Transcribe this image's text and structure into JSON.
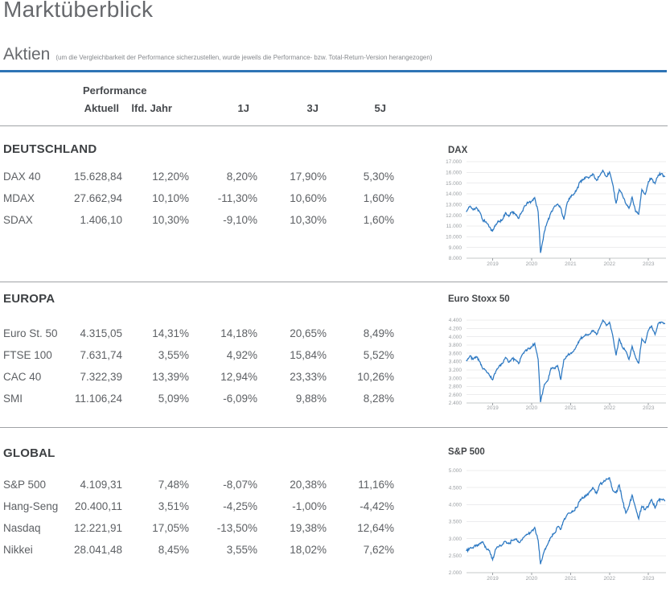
{
  "page": {
    "title": "Marktüberblick"
  },
  "aktien": {
    "title": "Aktien",
    "note": "(um die Vergleichbarkeit der Performance sicherzustellen, wurde jeweils die Performance- bzw. Total-Return-Version herangezogen)"
  },
  "table": {
    "group_header": "Performance",
    "columns": [
      "Aktuell",
      "lfd. Jahr",
      "1J",
      "3J",
      "5J"
    ],
    "sections": [
      {
        "title": "DEUTSCHLAND",
        "rows": [
          {
            "name": "DAX 40",
            "values": [
              "15.628,84",
              "12,20%",
              "8,20%",
              "17,90%",
              "5,30%"
            ]
          },
          {
            "name": "MDAX",
            "values": [
              "27.662,94",
              "10,10%",
              "-11,30%",
              "10,60%",
              "1,60%"
            ]
          },
          {
            "name": "SDAX",
            "values": [
              "1.406,10",
              "10,30%",
              "-9,10%",
              "10,30%",
              "1,60%"
            ]
          }
        ]
      },
      {
        "title": "EUROPA",
        "rows": [
          {
            "name": "Euro St. 50",
            "values": [
              "4.315,05",
              "14,31%",
              "14,18%",
              "20,65%",
              "8,49%"
            ]
          },
          {
            "name": "FTSE 100",
            "values": [
              "7.631,74",
              "3,55%",
              "4,92%",
              "15,84%",
              "5,52%"
            ]
          },
          {
            "name": "CAC 40",
            "values": [
              "7.322,39",
              "13,39%",
              "12,94%",
              "23,33%",
              "10,26%"
            ]
          },
          {
            "name": "SMI",
            "values": [
              "11.106,24",
              "5,09%",
              "-6,09%",
              "9,88%",
              "8,28%"
            ]
          }
        ]
      },
      {
        "title": "GLOBAL",
        "rows": [
          {
            "name": "S&P 500",
            "values": [
              "4.109,31",
              "7,48%",
              "-8,07%",
              "20,38%",
              "11,16%"
            ]
          },
          {
            "name": "Hang-Seng",
            "values": [
              "20.400,11",
              "3,51%",
              "-4,25%",
              "-1,00%",
              "-4,42%"
            ]
          },
          {
            "name": "Nasdaq",
            "values": [
              "12.221,91",
              "17,05%",
              "-13,50%",
              "19,38%",
              "12,64%"
            ]
          },
          {
            "name": "Nikkei",
            "values": [
              "28.041,48",
              "8,45%",
              "3,55%",
              "18,02%",
              "7,62%"
            ]
          }
        ]
      }
    ]
  },
  "colors": {
    "accent_rule": "#2e74b5",
    "chart_line": "#2c78c2",
    "divider": "#a0a3a6",
    "gridline": "#ececee",
    "axis_line": "#c6c8ca",
    "axis_text": "#9a9ea2"
  },
  "chart_data": [
    {
      "type": "line",
      "title": "DAX",
      "ylim": [
        8000,
        17000
      ],
      "ytick_step": 1000,
      "xlim": [
        2018.33,
        2023.45
      ],
      "xticks": [
        2019,
        2020,
        2021,
        2022,
        2023
      ],
      "x": [
        2018.33,
        2018.42,
        2018.5,
        2018.58,
        2018.67,
        2018.75,
        2018.83,
        2018.92,
        2019.0,
        2019.08,
        2019.17,
        2019.25,
        2019.33,
        2019.42,
        2019.5,
        2019.58,
        2019.67,
        2019.75,
        2019.83,
        2019.92,
        2020.0,
        2020.08,
        2020.17,
        2020.23,
        2020.33,
        2020.42,
        2020.5,
        2020.58,
        2020.67,
        2020.75,
        2020.83,
        2020.92,
        2021.0,
        2021.08,
        2021.17,
        2021.25,
        2021.33,
        2021.42,
        2021.5,
        2021.58,
        2021.67,
        2021.75,
        2021.83,
        2021.92,
        2022.0,
        2022.08,
        2022.17,
        2022.25,
        2022.33,
        2022.42,
        2022.5,
        2022.58,
        2022.67,
        2022.75,
        2022.83,
        2022.92,
        2023.0,
        2023.08,
        2023.17,
        2023.25,
        2023.33,
        2023.42
      ],
      "values": [
        12350,
        12850,
        12500,
        12750,
        12300,
        11500,
        11400,
        10900,
        10550,
        11150,
        11450,
        11550,
        12250,
        11900,
        12350,
        12150,
        11700,
        12300,
        12900,
        13200,
        13300,
        13650,
        12300,
        8500,
        10500,
        11500,
        12300,
        12800,
        13050,
        12700,
        11600,
        13250,
        13750,
        13900,
        14500,
        15150,
        15350,
        15550,
        15600,
        15850,
        15250,
        15700,
        16200,
        15600,
        16050,
        14950,
        13100,
        14400,
        13900,
        13100,
        12650,
        13700,
        12350,
        12100,
        14400,
        13950,
        15150,
        15450,
        14950,
        15750,
        15900,
        15630
      ]
    },
    {
      "type": "line",
      "title": "Euro Stoxx 50",
      "ylim": [
        2400,
        4400
      ],
      "ytick_step": 200,
      "xlim": [
        2018.33,
        2023.45
      ],
      "xticks": [
        2019,
        2020,
        2021,
        2022,
        2023
      ],
      "x": [
        2018.33,
        2018.42,
        2018.5,
        2018.58,
        2018.67,
        2018.75,
        2018.83,
        2018.92,
        2019.0,
        2019.08,
        2019.17,
        2019.25,
        2019.33,
        2019.42,
        2019.5,
        2019.58,
        2019.67,
        2019.75,
        2019.83,
        2019.92,
        2020.0,
        2020.08,
        2020.17,
        2020.23,
        2020.33,
        2020.42,
        2020.5,
        2020.58,
        2020.67,
        2020.75,
        2020.83,
        2020.92,
        2021.0,
        2021.08,
        2021.17,
        2021.25,
        2021.33,
        2021.42,
        2021.5,
        2021.58,
        2021.67,
        2021.75,
        2021.83,
        2021.92,
        2022.0,
        2022.08,
        2022.17,
        2022.25,
        2022.33,
        2022.42,
        2022.5,
        2022.58,
        2022.67,
        2022.75,
        2022.83,
        2022.92,
        2023.0,
        2023.08,
        2023.17,
        2023.25,
        2023.33,
        2023.42
      ],
      "values": [
        3420,
        3540,
        3450,
        3520,
        3400,
        3220,
        3180,
        3060,
        2960,
        3160,
        3300,
        3350,
        3500,
        3380,
        3480,
        3440,
        3350,
        3550,
        3650,
        3720,
        3750,
        3840,
        3450,
        2420,
        2850,
        2950,
        3240,
        3230,
        3300,
        2960,
        3450,
        3550,
        3600,
        3650,
        3800,
        3950,
        4000,
        4050,
        4070,
        4150,
        4050,
        4220,
        4400,
        4270,
        4350,
        4050,
        3550,
        3950,
        3750,
        3650,
        3450,
        3770,
        3500,
        3350,
        3950,
        3850,
        4160,
        4260,
        4050,
        4320,
        4350,
        4315
      ]
    },
    {
      "type": "line",
      "title": "S&P 500",
      "ylim": [
        2000,
        5000
      ],
      "ytick_step": 500,
      "xlim": [
        2018.33,
        2023.45
      ],
      "xticks": [
        2019,
        2020,
        2021,
        2022,
        2023
      ],
      "x": [
        2018.33,
        2018.42,
        2018.5,
        2018.58,
        2018.67,
        2018.75,
        2018.83,
        2018.92,
        2019.0,
        2019.08,
        2019.17,
        2019.25,
        2019.33,
        2019.42,
        2019.5,
        2019.58,
        2019.67,
        2019.75,
        2019.83,
        2019.92,
        2020.0,
        2020.08,
        2020.17,
        2020.23,
        2020.33,
        2020.42,
        2020.5,
        2020.58,
        2020.67,
        2020.75,
        2020.83,
        2020.92,
        2021.0,
        2021.08,
        2021.17,
        2021.25,
        2021.33,
        2021.42,
        2021.5,
        2021.58,
        2021.67,
        2021.75,
        2021.83,
        2021.92,
        2022.0,
        2022.08,
        2022.17,
        2022.25,
        2022.33,
        2022.42,
        2022.5,
        2022.58,
        2022.67,
        2022.75,
        2022.83,
        2022.92,
        2023.0,
        2023.08,
        2023.17,
        2023.25,
        2023.33,
        2023.42
      ],
      "values": [
        2650,
        2720,
        2720,
        2800,
        2850,
        2910,
        2720,
        2650,
        2380,
        2700,
        2780,
        2830,
        2920,
        2850,
        2960,
        2990,
        2890,
        2960,
        3080,
        3150,
        3230,
        3330,
        2950,
        2250,
        2650,
        2850,
        3050,
        3150,
        3350,
        3270,
        3550,
        3720,
        3750,
        3820,
        3920,
        4150,
        4200,
        4280,
        4390,
        4500,
        4330,
        4600,
        4650,
        4760,
        4790,
        4430,
        4350,
        4580,
        4150,
        3750,
        3950,
        4280,
        3900,
        3580,
        3950,
        3850,
        3950,
        4150,
        3900,
        4120,
        4160,
        4110
      ]
    }
  ]
}
